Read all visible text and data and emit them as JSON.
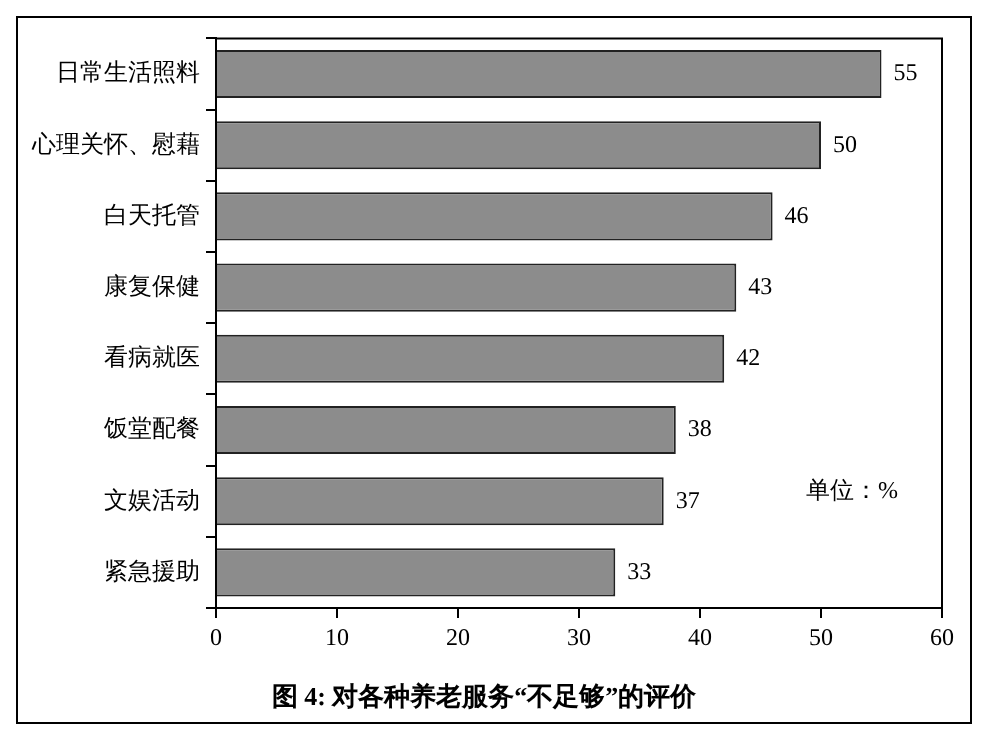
{
  "chart_data": {
    "type": "bar",
    "orientation": "horizontal",
    "title": "图 4: 对各种养老服务“不足够”的评价",
    "categories": [
      "日常生活照料",
      "心理关怀、慰藉",
      "白天托管",
      "康复保健",
      "看病就医",
      "饭堂配餐",
      "文娱活动",
      "紧急援助"
    ],
    "values": [
      55,
      50,
      46,
      43,
      42,
      38,
      37,
      33
    ],
    "color": "#8c8c8c",
    "xlim": [
      0,
      60
    ],
    "xticks": [
      0,
      10,
      20,
      30,
      40,
      50,
      60
    ],
    "grid": false,
    "legend": false,
    "data_labels": true,
    "annotations": [
      "单位：%"
    ]
  }
}
